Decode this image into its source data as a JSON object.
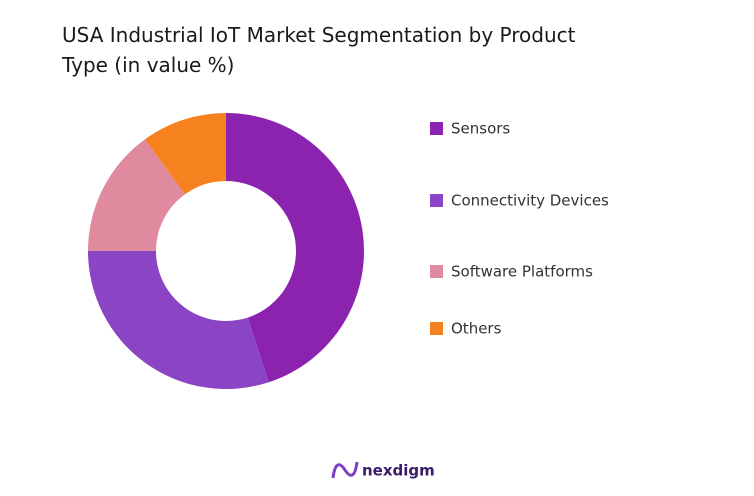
{
  "chart_data": {
    "type": "donut",
    "title": "USA Industrial IoT Market Segmentation by Product Type (in value %)",
    "categories": [
      "Sensors",
      "Connectivity Devices",
      "Software Platforms",
      "Others"
    ],
    "values": [
      45,
      30,
      15,
      10
    ],
    "colors": [
      "#8c23ae",
      "#8b44c4",
      "#e08aa0",
      "#f5821f"
    ],
    "legend": "right"
  },
  "branding": "nexdigm"
}
